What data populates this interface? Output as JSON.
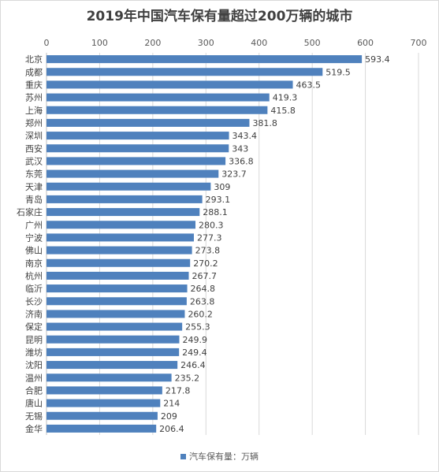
{
  "chart_data": {
    "type": "bar",
    "orientation": "horizontal",
    "title": "2019年中国汽车保有量超过200万辆的城市",
    "categories": [
      "北京",
      "成都",
      "重庆",
      "苏州",
      "上海",
      "郑州",
      "深圳",
      "西安",
      "武汉",
      "东莞",
      "天津",
      "青岛",
      "石家庄",
      "广州",
      "宁波",
      "佛山",
      "南京",
      "杭州",
      "临沂",
      "长沙",
      "济南",
      "保定",
      "昆明",
      "潍坊",
      "沈阳",
      "温州",
      "合肥",
      "唐山",
      "无锡",
      "金华"
    ],
    "series": [
      {
        "name": "汽车保有量：万辆",
        "values": [
          593.4,
          519.5,
          463.5,
          419.3,
          415.8,
          381.8,
          343.4,
          343,
          336.8,
          323.7,
          309,
          293.1,
          288.1,
          280.3,
          277.3,
          273.8,
          270.2,
          267.7,
          264.8,
          263.8,
          260.2,
          255.3,
          249.9,
          249.4,
          246.4,
          235.2,
          217.8,
          214,
          209,
          206.4
        ],
        "value_labels": [
          "593.4",
          "519.5",
          "463.5",
          "419.3",
          "415.8",
          "381.8",
          "343.4",
          "343",
          "336.8",
          "323.7",
          "309",
          "293.1",
          "288.1",
          "280.3",
          "277.3",
          "273.8",
          "270.2",
          "267.7",
          "264.8",
          "263.8",
          "260.2",
          "255.3",
          "249.9",
          "249.4",
          "246.4",
          "235.2",
          "217.8",
          "214",
          "209",
          "206.4"
        ]
      }
    ],
    "xlim": [
      0,
      700
    ],
    "xticks": [
      "0",
      "100",
      "200",
      "300",
      "400",
      "500",
      "600",
      "700"
    ],
    "axis_position": "top",
    "gridlines": true,
    "legend_position": "bottom",
    "bar_color": "#4f81bd",
    "grid_color": "#d9d9d9"
  }
}
